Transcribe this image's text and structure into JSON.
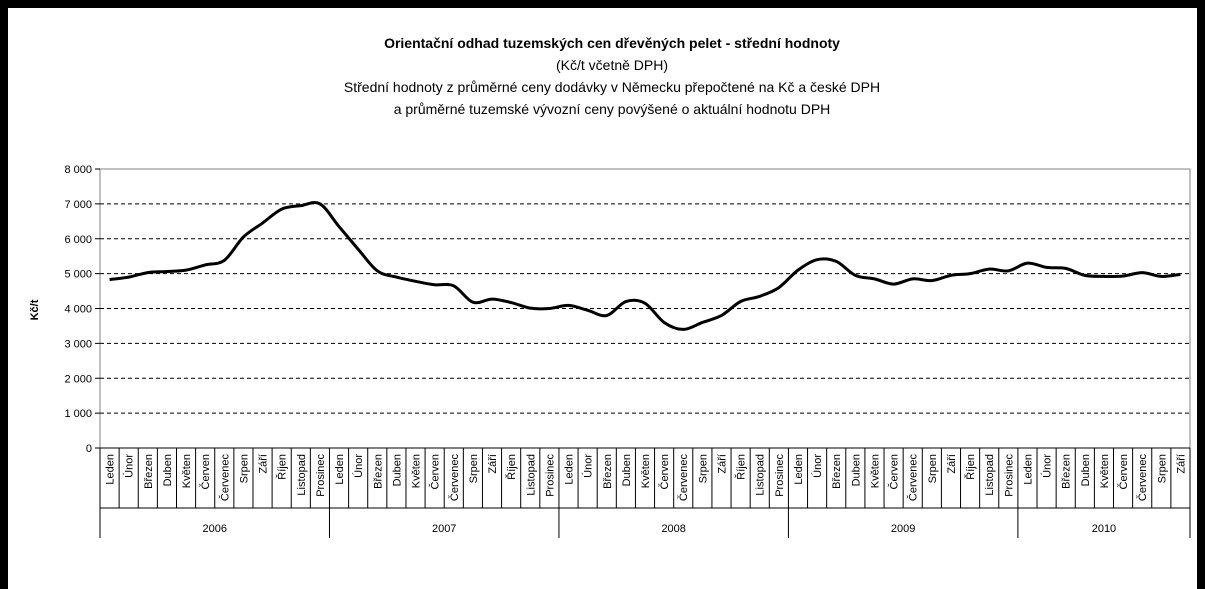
{
  "chart_data": {
    "type": "line",
    "title": "Orientační odhad tuzemských cen dřevěných pelet - střední hodnoty",
    "subtitle": [
      "(Kč/t včetně DPH)",
      "Střední hodnoty z průměrné ceny dodávky v Německu přepočtené na Kč a české DPH",
      "a průměrné tuzemské vývozní ceny povýšené o aktuální hodnotu DPH"
    ],
    "y_label": "Kč/t",
    "groups": [
      "2006",
      "2007",
      "2008",
      "2009",
      "2010"
    ],
    "categories": [
      "Leden",
      "Únor",
      "Březen",
      "Duben",
      "Květen",
      "Červen",
      "Červenec",
      "Srpen",
      "Září",
      "Říjen",
      "Listopad",
      "Prosinec",
      "Leden",
      "Únor",
      "Březen",
      "Duben",
      "Květen",
      "Červen",
      "Červenec",
      "Srpen",
      "Září",
      "Říjen",
      "Listopad",
      "Prosinec",
      "Leden",
      "Únor",
      "Březen",
      "Duben",
      "Květen",
      "Červen",
      "Červenec",
      "Srpen",
      "Září",
      "Říjen",
      "Listopad",
      "Prosinec",
      "Leden",
      "Únor",
      "Březen",
      "Duben",
      "Květen",
      "Červen",
      "Červenec",
      "Srpen",
      "Září",
      "Říjen",
      "Listopad",
      "Prosinec",
      "Leden",
      "Únor",
      "Březen",
      "Duben",
      "Květen",
      "Červen",
      "Červenec",
      "Srpen",
      "Září"
    ],
    "values": [
      4830,
      4900,
      5030,
      5060,
      5100,
      5250,
      5380,
      6050,
      6450,
      6850,
      6950,
      7000,
      6350,
      5700,
      5080,
      4900,
      4780,
      4680,
      4650,
      4180,
      4270,
      4170,
      4010,
      4000,
      4090,
      3950,
      3800,
      4200,
      4150,
      3600,
      3400,
      3600,
      3800,
      4200,
      4350,
      4600,
      5100,
      5400,
      5350,
      4950,
      4850,
      4700,
      4850,
      4800,
      4950,
      5000,
      5130,
      5080,
      5300,
      5180,
      5150,
      4950,
      4920,
      4930,
      5030,
      4920,
      4980
    ],
    "color": "#000000",
    "ylim": [
      0,
      8000
    ],
    "yticks": [
      0,
      {
        "value": 1000,
        "label": "1 000"
      },
      {
        "value": 2000,
        "label": "2 000"
      },
      {
        "value": 3000,
        "label": "3 000"
      },
      {
        "value": 4000,
        "label": "4 000"
      },
      {
        "value": 5000,
        "label": "5 000"
      },
      {
        "value": 6000,
        "label": "6 000"
      },
      {
        "value": 7000,
        "label": "7 000"
      },
      {
        "value": 8000,
        "label": "8 000"
      }
    ],
    "grid": true
  }
}
